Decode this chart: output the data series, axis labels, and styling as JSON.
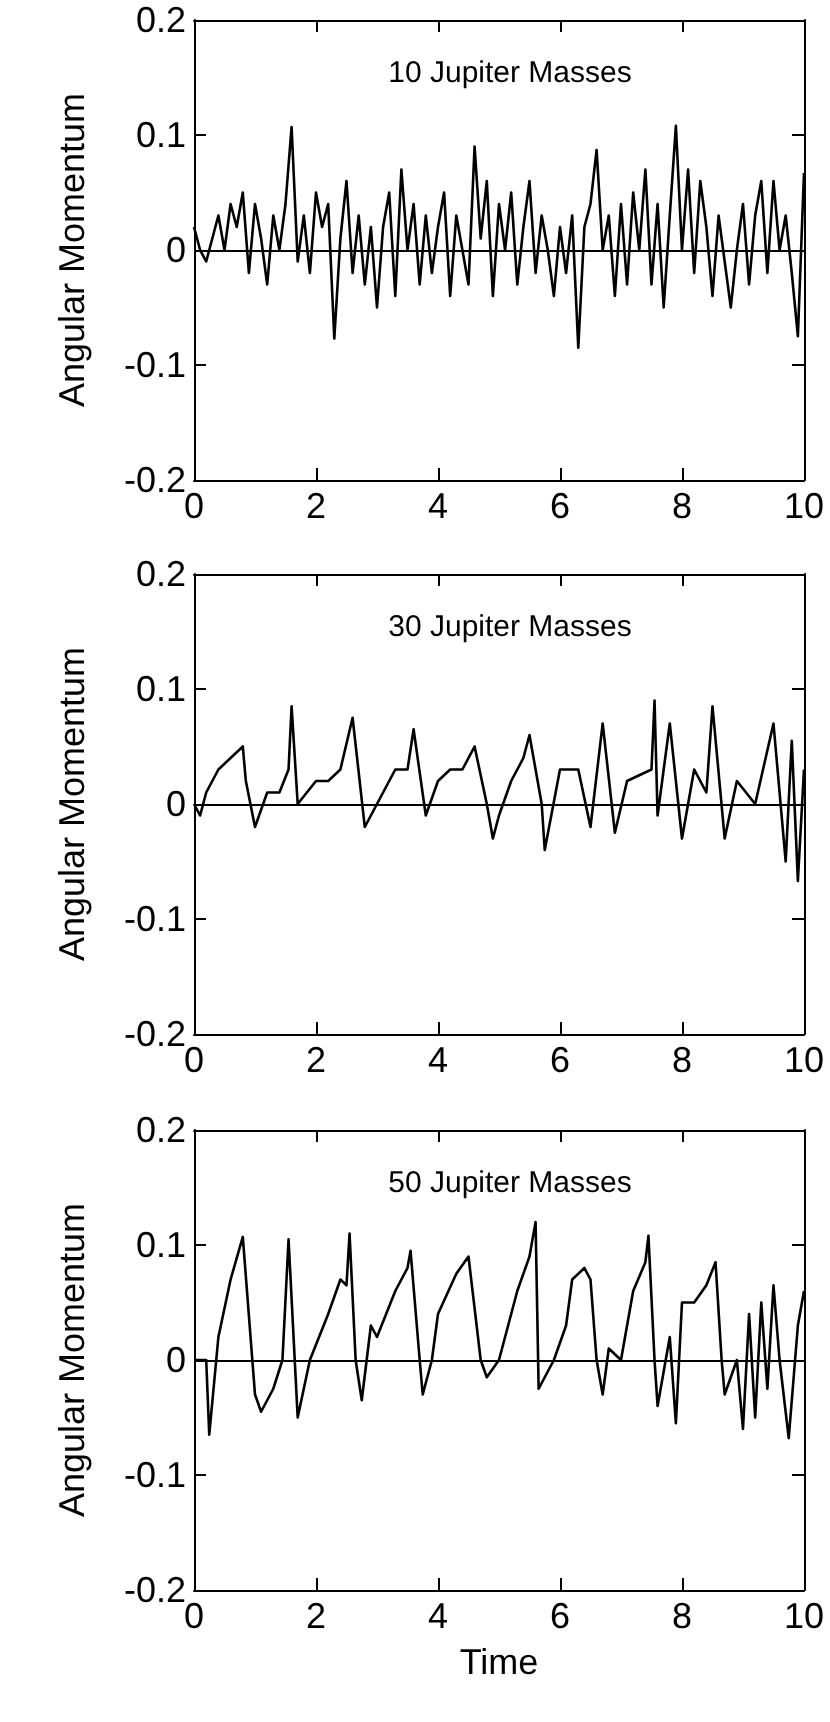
{
  "chart_data": [
    {
      "type": "line",
      "title": "10 Jupiter Masses",
      "ylabel": "Angular Momentum",
      "xlim": [
        0,
        10
      ],
      "ylim": [
        -0.2,
        0.2
      ],
      "xticks": [
        0,
        2,
        4,
        6,
        8,
        10
      ],
      "yticks": [
        -0.2,
        -0.1,
        0,
        0.1,
        0.2
      ],
      "grid": false,
      "marker": "none",
      "line_style": "solid",
      "ref_lines": [
        {
          "axis": "y",
          "value": 0,
          "color": "#000000"
        }
      ],
      "series": [
        {
          "color": "#000000",
          "x": [
            0,
            0.1,
            0.2,
            0.3,
            0.4,
            0.5,
            0.6,
            0.7,
            0.8,
            0.9,
            1,
            1.1,
            1.2,
            1.3,
            1.4,
            1.5,
            1.6,
            1.7,
            1.8,
            1.9,
            2,
            2.1,
            2.2,
            2.3,
            2.4,
            2.5,
            2.6,
            2.7,
            2.8,
            2.9,
            3,
            3.1,
            3.2,
            3.3,
            3.4,
            3.5,
            3.6,
            3.7,
            3.8,
            3.9,
            4,
            4.1,
            4.2,
            4.3,
            4.4,
            4.5,
            4.6,
            4.7,
            4.8,
            4.9,
            5,
            5.1,
            5.2,
            5.3,
            5.4,
            5.5,
            5.6,
            5.7,
            5.8,
            5.9,
            6,
            6.1,
            6.2,
            6.3,
            6.4,
            6.5,
            6.6,
            6.7,
            6.8,
            6.9,
            7,
            7.1,
            7.2,
            7.3,
            7.4,
            7.5,
            7.6,
            7.7,
            7.8,
            7.9,
            8,
            8.1,
            8.2,
            8.3,
            8.4,
            8.5,
            8.6,
            8.7,
            8.8,
            8.9,
            9,
            9.1,
            9.2,
            9.3,
            9.4,
            9.5,
            9.6,
            9.7,
            9.8,
            9.9,
            10
          ],
          "values": [
            0.02,
            0,
            -0.01,
            0.01,
            0.03,
            0,
            0.04,
            0.02,
            0.05,
            -0.02,
            0.04,
            0.01,
            -0.03,
            0.03,
            0,
            0.04,
            0.107,
            -0.01,
            0.03,
            -0.02,
            0.05,
            0.02,
            0.04,
            -0.077,
            0.01,
            0.06,
            -0.02,
            0.03,
            -0.03,
            0.02,
            -0.05,
            0.02,
            0.05,
            -0.04,
            0.07,
            0,
            0.04,
            -0.03,
            0.03,
            -0.02,
            0.02,
            0.05,
            -0.04,
            0.03,
            0,
            -0.03,
            0.09,
            0.01,
            0.06,
            -0.04,
            0.04,
            0,
            0.05,
            -0.03,
            0.02,
            0.06,
            -0.02,
            0.03,
            0,
            -0.04,
            0.02,
            -0.02,
            0.03,
            -0.085,
            0.02,
            0.04,
            0.087,
            0,
            0.03,
            -0.04,
            0.04,
            -0.03,
            0.05,
            0,
            0.07,
            -0.03,
            0.04,
            -0.05,
            0.03,
            0.108,
            0,
            0.07,
            -0.02,
            0.06,
            0.02,
            -0.04,
            0.03,
            -0.01,
            -0.05,
            0,
            0.04,
            -0.03,
            0.03,
            0.06,
            -0.02,
            0.06,
            0,
            0.03,
            -0.02,
            -0.075,
            0.067
          ]
        }
      ]
    },
    {
      "type": "line",
      "title": "30 Jupiter Masses",
      "ylabel": "Angular Momentum",
      "xlim": [
        0,
        10
      ],
      "ylim": [
        -0.2,
        0.2
      ],
      "xticks": [
        0,
        2,
        4,
        6,
        8,
        10
      ],
      "yticks": [
        -0.2,
        -0.1,
        0,
        0.1,
        0.2
      ],
      "grid": false,
      "marker": "none",
      "line_style": "solid",
      "ref_lines": [
        {
          "axis": "y",
          "value": 0,
          "color": "#000000"
        }
      ],
      "series": [
        {
          "color": "#000000",
          "x": [
            0,
            0.1,
            0.2,
            0.4,
            0.6,
            0.8,
            0.85,
            1,
            1.2,
            1.4,
            1.55,
            1.6,
            1.7,
            2,
            2.2,
            2.4,
            2.6,
            2.8,
            3,
            3.3,
            3.5,
            3.6,
            3.8,
            4,
            4.2,
            4.4,
            4.6,
            4.8,
            4.9,
            5,
            5.2,
            5.4,
            5.5,
            5.7,
            5.75,
            6,
            6.3,
            6.5,
            6.7,
            6.9,
            7.1,
            7.5,
            7.55,
            7.6,
            7.8,
            8,
            8.2,
            8.4,
            8.5,
            8.7,
            8.9,
            9.2,
            9.5,
            9.7,
            9.8,
            9.9,
            10
          ],
          "values": [
            0,
            -0.01,
            0.01,
            0.03,
            0.04,
            0.05,
            0.02,
            -0.02,
            0.01,
            0.01,
            0.03,
            0.085,
            0,
            0.02,
            0.02,
            0.03,
            0.075,
            -0.02,
            0,
            0.03,
            0.03,
            0.065,
            -0.01,
            0.02,
            0.03,
            0.03,
            0.05,
            0,
            -0.03,
            -0.01,
            0.02,
            0.04,
            0.06,
            0,
            -0.04,
            0.03,
            0.03,
            -0.02,
            0.07,
            -0.025,
            0.02,
            0.03,
            0.09,
            -0.01,
            0.07,
            -0.03,
            0.03,
            0.01,
            0.085,
            -0.03,
            0.02,
            0,
            0.07,
            -0.05,
            0.055,
            -0.067,
            0.03
          ]
        }
      ]
    },
    {
      "type": "line",
      "title": "50 Jupiter Masses",
      "xlabel": "Time",
      "ylabel": "Angular Momentum",
      "xlim": [
        0,
        10
      ],
      "ylim": [
        -0.2,
        0.2
      ],
      "xticks": [
        0,
        2,
        4,
        6,
        8,
        10
      ],
      "yticks": [
        -0.2,
        -0.1,
        0,
        0.1,
        0.2
      ],
      "grid": false,
      "marker": "none",
      "line_style": "solid",
      "ref_lines": [
        {
          "axis": "y",
          "value": 0,
          "color": "#000000"
        }
      ],
      "series": [
        {
          "color": "#000000",
          "x": [
            0,
            0.2,
            0.25,
            0.4,
            0.6,
            0.8,
            1,
            1.1,
            1.3,
            1.45,
            1.55,
            1.7,
            1.9,
            2.2,
            2.4,
            2.5,
            2.55,
            2.65,
            2.75,
            2.9,
            3,
            3.3,
            3.5,
            3.55,
            3.7,
            3.75,
            3.9,
            4,
            4.3,
            4.5,
            4.7,
            4.8,
            5,
            5.3,
            5.5,
            5.6,
            5.65,
            5.9,
            6.1,
            6.2,
            6.4,
            6.5,
            6.6,
            6.7,
            6.8,
            7,
            7.2,
            7.4,
            7.45,
            7.55,
            7.6,
            7.8,
            7.9,
            8,
            8.2,
            8.4,
            8.55,
            8.65,
            8.7,
            8.9,
            9,
            9.1,
            9.2,
            9.3,
            9.4,
            9.5,
            9.6,
            9.75,
            9.9,
            10
          ],
          "values": [
            0,
            0,
            -0.065,
            0.02,
            0.07,
            0.107,
            -0.03,
            -0.045,
            -0.025,
            0,
            0.105,
            -0.05,
            0,
            0.04,
            0.07,
            0.065,
            0.11,
            0,
            -0.035,
            0.03,
            0.02,
            0.06,
            0.08,
            0.095,
            0,
            -0.03,
            0,
            0.04,
            0.075,
            0.09,
            0,
            -0.015,
            0,
            0.06,
            0.09,
            0.12,
            -0.025,
            0,
            0.03,
            0.07,
            0.08,
            0.07,
            0,
            -0.03,
            0.01,
            0,
            0.06,
            0.085,
            0.108,
            0,
            -0.04,
            0.02,
            -0.055,
            0.05,
            0.05,
            0.065,
            0.085,
            0,
            -0.03,
            0,
            -0.06,
            0.04,
            -0.05,
            0.05,
            -0.025,
            0.065,
            0,
            -0.068,
            0.03,
            0.06
          ]
        }
      ]
    }
  ]
}
